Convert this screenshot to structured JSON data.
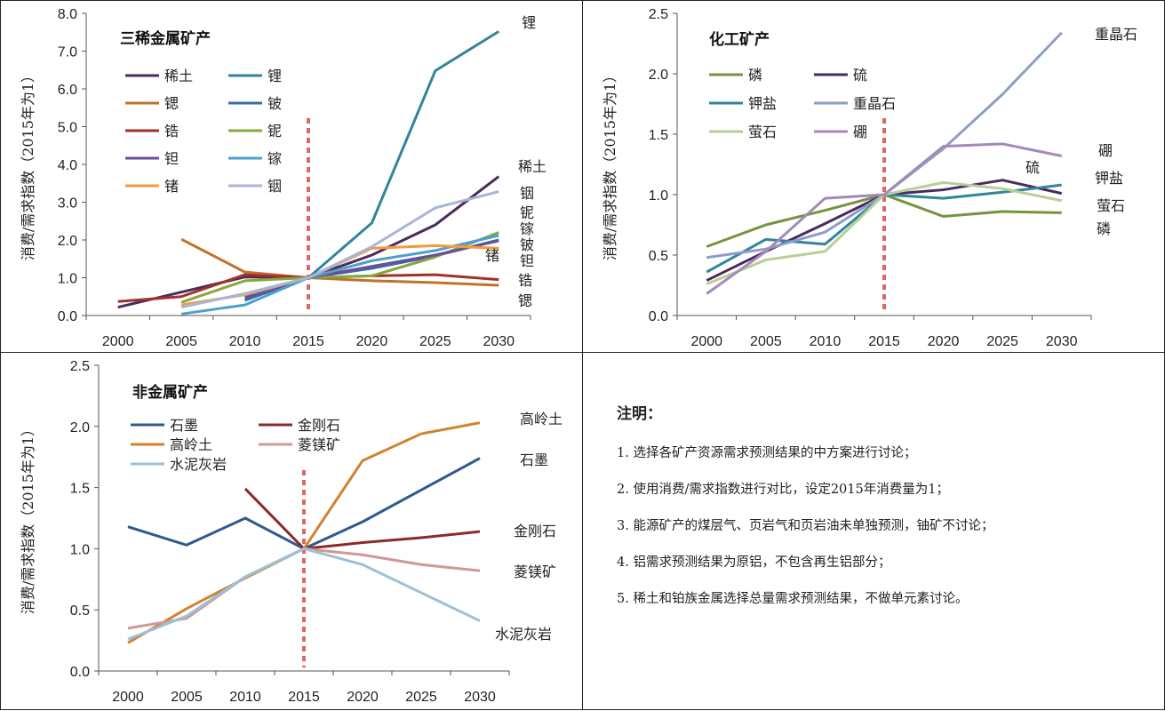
{
  "charts": [
    {
      "title": "三稀金属矿产",
      "type": "line",
      "x": [
        2000,
        2005,
        2010,
        2015,
        2020,
        2025,
        2030
      ],
      "xticks": [
        "2000",
        "2005",
        "2010",
        "2015",
        "2020",
        "2025",
        "2030"
      ],
      "ylim": [
        0,
        8
      ],
      "yticks": [
        "0.0",
        "1.0",
        "2.0",
        "3.0",
        "4.0",
        "5.0",
        "6.0",
        "7.0",
        "8.0"
      ],
      "ylabel": "消费/需求指数（2015年为1）",
      "ref_x": 2015,
      "series": [
        {
          "name": "稀土",
          "color": "#4B2A5E",
          "values": [
            0.22,
            0.62,
            1.02,
            1.0,
            1.6,
            2.4,
            3.68
          ]
        },
        {
          "name": "锂",
          "color": "#31859C",
          "values": [
            null,
            null,
            0.4,
            1.0,
            2.45,
            6.48,
            7.52
          ]
        },
        {
          "name": "锶",
          "color": "#C0712A",
          "values": [
            null,
            2.02,
            1.15,
            1.0,
            0.92,
            0.87,
            0.8
          ]
        },
        {
          "name": "铍",
          "color": "#3A6AAE",
          "values": [
            null,
            null,
            0.42,
            1.0,
            1.25,
            1.58,
            2.0
          ]
        },
        {
          "name": "锆",
          "color": "#A3302E",
          "values": [
            0.37,
            0.5,
            1.08,
            1.0,
            1.05,
            1.08,
            0.95
          ]
        },
        {
          "name": "铌",
          "color": "#86A83A",
          "values": [
            null,
            0.35,
            0.92,
            1.0,
            1.05,
            1.55,
            2.2
          ]
        },
        {
          "name": "钽",
          "color": "#6B4E98",
          "values": [
            null,
            null,
            0.48,
            1.0,
            1.3,
            1.6,
            1.98
          ]
        },
        {
          "name": "镓",
          "color": "#4BA0D0",
          "values": [
            null,
            0.04,
            0.28,
            1.0,
            1.45,
            1.72,
            2.12
          ]
        },
        {
          "name": "锗",
          "color": "#F39A3A",
          "values": [
            null,
            0.28,
            0.55,
            1.0,
            1.78,
            1.85,
            1.78
          ]
        },
        {
          "name": "铟",
          "color": "#A9B4D6",
          "values": [
            null,
            0.22,
            0.58,
            1.0,
            1.82,
            2.85,
            3.28
          ]
        }
      ],
      "end_labels": [
        "锂",
        "稀土",
        "铟",
        "铌",
        "镓",
        "铍",
        "钽",
        "锗",
        "锆",
        "锶"
      ]
    },
    {
      "title": "化工矿产",
      "type": "line",
      "x": [
        2000,
        2005,
        2010,
        2015,
        2020,
        2025,
        2030
      ],
      "xticks": [
        "2000",
        "2005",
        "2010",
        "2015",
        "2020",
        "2025",
        "2030"
      ],
      "ylim": [
        0,
        2.5
      ],
      "yticks": [
        "0.0",
        "0.5",
        "1.0",
        "1.5",
        "2.0",
        "2.5"
      ],
      "ylabel": "消费/需求指数（2015年为1）",
      "ref_x": 2015,
      "series": [
        {
          "name": "磷",
          "color": "#77933C",
          "values": [
            0.57,
            0.75,
            0.87,
            1.0,
            0.82,
            0.86,
            0.85
          ]
        },
        {
          "name": "硫",
          "color": "#4B2A5E",
          "values": [
            0.29,
            0.53,
            0.76,
            1.0,
            1.04,
            1.12,
            1.01
          ]
        },
        {
          "name": "钾盐",
          "color": "#31859C",
          "values": [
            0.36,
            0.63,
            0.59,
            1.0,
            0.97,
            1.02,
            1.08
          ]
        },
        {
          "name": "重晶石",
          "color": "#8E9CC8",
          "values": [
            0.48,
            0.55,
            0.69,
            1.0,
            1.38,
            1.83,
            2.34
          ]
        },
        {
          "name": "萤石",
          "color": "#B9CE96",
          "values": [
            0.26,
            0.46,
            0.53,
            1.0,
            1.1,
            1.05,
            0.95
          ]
        },
        {
          "name": "硼",
          "color": "#A38AB8",
          "values": [
            0.18,
            0.53,
            0.97,
            1.0,
            1.4,
            1.42,
            1.32
          ]
        }
      ],
      "end_labels": [
        "重晶石",
        "硼",
        "硫",
        "钾盐",
        "萤石",
        "磷"
      ]
    },
    {
      "title": "非金属矿产",
      "type": "line",
      "x": [
        2000,
        2005,
        2010,
        2015,
        2020,
        2025,
        2030
      ],
      "xticks": [
        "2000",
        "2005",
        "2010",
        "2015",
        "2020",
        "2025",
        "2030"
      ],
      "ylim": [
        0,
        2.5
      ],
      "yticks": [
        "0.0",
        "0.5",
        "1.0",
        "1.5",
        "2.0",
        "2.5"
      ],
      "ylabel": "消费/需求指数（2015年为1）",
      "ref_x": 2015,
      "series": [
        {
          "name": "石墨",
          "color": "#2E5A8E",
          "values": [
            1.18,
            1.03,
            1.25,
            1.0,
            1.22,
            1.48,
            1.74
          ]
        },
        {
          "name": "金刚石",
          "color": "#8B2A2A",
          "values": [
            null,
            null,
            1.49,
            1.0,
            1.05,
            1.09,
            1.14
          ]
        },
        {
          "name": "高岭土",
          "color": "#D2822E",
          "values": [
            0.23,
            0.51,
            0.76,
            1.0,
            1.72,
            1.94,
            2.03
          ]
        },
        {
          "name": "菱镁矿",
          "color": "#D09898",
          "values": [
            0.35,
            0.43,
            0.77,
            1.0,
            0.95,
            0.87,
            0.82
          ]
        },
        {
          "name": "水泥灰岩",
          "color": "#9CC0D8",
          "values": [
            0.26,
            0.45,
            0.77,
            1.0,
            0.87,
            0.64,
            0.41
          ]
        }
      ],
      "end_labels": [
        "高岭土",
        "石墨",
        "金刚石",
        "菱镁矿",
        "水泥灰岩"
      ]
    }
  ],
  "notes": {
    "title": "注明：",
    "items": [
      "1. 选择各矿产资源需求预测结果的中方案进行讨论；",
      "2. 使用消费/需求指数进行对比，设定2015年消费量为1；",
      "3. 能源矿产的煤层气、页岩气和页岩油未单独预测，铀矿不讨论；",
      "4. 铝需求预测结果为原铝，不包含再生铝部分；",
      "5. 稀土和铂族金属选择总量需求预测结果，不做单元素讨论。"
    ]
  }
}
